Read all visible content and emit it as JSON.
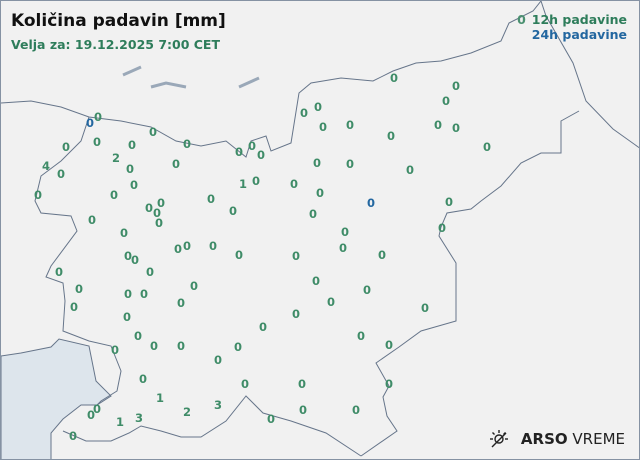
{
  "title": "Količina padavin [mm]",
  "valid": "Velja za: 19.12.2025 7:00 CET",
  "legend": {
    "sample": "0",
    "h12": "12h padavine",
    "h24": "24h padavine"
  },
  "colors": {
    "h12": "#3f8c68",
    "h24": "#2367a0",
    "sea": "#dde5ec",
    "land": "#f1f1f1",
    "border": "#66758a"
  },
  "logo": {
    "icon": "sun-crossed-icon",
    "brand": "ARSO",
    "product": "VREME"
  },
  "stations": [
    {
      "v": "0",
      "t": "24h"
    },
    {
      "v": "0",
      "t": "12h"
    },
    {
      "v": "0",
      "t": "12h"
    },
    {
      "v": "0",
      "t": "12h"
    },
    {
      "v": "0",
      "t": "12h"
    },
    {
      "v": "0",
      "t": "12h"
    },
    {
      "v": "2",
      "t": "12h"
    },
    {
      "v": "4",
      "t": "12h"
    },
    {
      "v": "0",
      "t": "12h"
    },
    {
      "v": "0",
      "t": "12h"
    },
    {
      "v": "0",
      "t": "12h"
    },
    {
      "v": "0",
      "t": "12h"
    },
    {
      "v": "0",
      "t": "12h"
    },
    {
      "v": "0",
      "t": "12h"
    },
    {
      "v": "0",
      "t": "12h"
    },
    {
      "v": "1",
      "t": "12h"
    },
    {
      "v": "0",
      "t": "12h"
    },
    {
      "v": "0",
      "t": "12h"
    },
    {
      "v": "0",
      "t": "12h"
    },
    {
      "v": "0",
      "t": "12h"
    },
    {
      "v": "0",
      "t": "12h"
    },
    {
      "v": "0",
      "t": "12h"
    },
    {
      "v": "0",
      "t": "12h"
    },
    {
      "v": "0",
      "t": "12h"
    },
    {
      "v": "0",
      "t": "12h"
    },
    {
      "v": "0",
      "t": "12h"
    },
    {
      "v": "0",
      "t": "12h"
    },
    {
      "v": "0",
      "t": "12h"
    },
    {
      "v": "0",
      "t": "12h"
    },
    {
      "v": "0",
      "t": "12h"
    },
    {
      "v": "0",
      "t": "12h"
    },
    {
      "v": "0",
      "t": "12h"
    },
    {
      "v": "0",
      "t": "12h"
    },
    {
      "v": "0",
      "t": "12h"
    },
    {
      "v": "0",
      "t": "12h"
    },
    {
      "v": "0",
      "t": "12h"
    },
    {
      "v": "0",
      "t": "12h"
    },
    {
      "v": "0",
      "t": "12h"
    },
    {
      "v": "0",
      "t": "12h"
    },
    {
      "v": "0",
      "t": "12h"
    },
    {
      "v": "0",
      "t": "12h"
    },
    {
      "v": "0",
      "t": "12h"
    },
    {
      "v": "0",
      "t": "12h"
    },
    {
      "v": "0",
      "t": "12h"
    },
    {
      "v": "0",
      "t": "12h"
    },
    {
      "v": "0",
      "t": "12h"
    },
    {
      "v": "0",
      "t": "12h"
    },
    {
      "v": "0",
      "t": "12h"
    },
    {
      "v": "0",
      "t": "12h"
    },
    {
      "v": "0",
      "t": "12h"
    },
    {
      "v": "0",
      "t": "12h"
    },
    {
      "v": "0",
      "t": "12h"
    },
    {
      "v": "1",
      "t": "12h"
    },
    {
      "v": "2",
      "t": "12h"
    },
    {
      "v": "3",
      "t": "12h"
    },
    {
      "v": "3",
      "t": "12h"
    },
    {
      "v": "1",
      "t": "12h"
    },
    {
      "v": "0",
      "t": "12h"
    },
    {
      "v": "0",
      "t": "12h"
    },
    {
      "v": "0",
      "t": "12h"
    },
    {
      "v": "0",
      "t": "12h"
    },
    {
      "v": "0",
      "t": "12h"
    },
    {
      "v": "0",
      "t": "12h"
    },
    {
      "v": "0",
      "t": "12h"
    },
    {
      "v": "0",
      "t": "12h"
    },
    {
      "v": "0",
      "t": "12h"
    },
    {
      "v": "0",
      "t": "12h"
    },
    {
      "v": "0",
      "t": "12h"
    },
    {
      "v": "0",
      "t": "12h"
    },
    {
      "v": "0",
      "t": "12h"
    },
    {
      "v": "0",
      "t": "12h"
    },
    {
      "v": "0",
      "t": "12h"
    },
    {
      "v": "0",
      "t": "12h"
    },
    {
      "v": "0",
      "t": "12h"
    },
    {
      "v": "0",
      "t": "12h"
    },
    {
      "v": "0",
      "t": "12h"
    },
    {
      "v": "0",
      "t": "12h"
    },
    {
      "v": "0",
      "t": "12h"
    },
    {
      "v": "0",
      "t": "12h"
    },
    {
      "v": "0",
      "t": "12h"
    },
    {
      "v": "0",
      "t": "12h"
    },
    {
      "v": "0",
      "t": "12h"
    },
    {
      "v": "0",
      "t": "12h"
    },
    {
      "v": "0",
      "t": "12h"
    },
    {
      "v": "0",
      "t": "12h"
    },
    {
      "v": "0",
      "t": "24h"
    },
    {
      "v": "0",
      "t": "12h"
    },
    {
      "v": "0",
      "t": "12h"
    },
    {
      "v": "0",
      "t": "12h"
    },
    {
      "v": "0",
      "t": "12h"
    },
    {
      "v": "0",
      "t": "12h"
    },
    {
      "v": "0",
      "t": "12h"
    },
    {
      "v": "0",
      "t": "12h"
    },
    {
      "v": "0",
      "t": "12h"
    },
    {
      "v": "0",
      "t": "12h"
    },
    {
      "v": "0",
      "t": "12h"
    }
  ]
}
